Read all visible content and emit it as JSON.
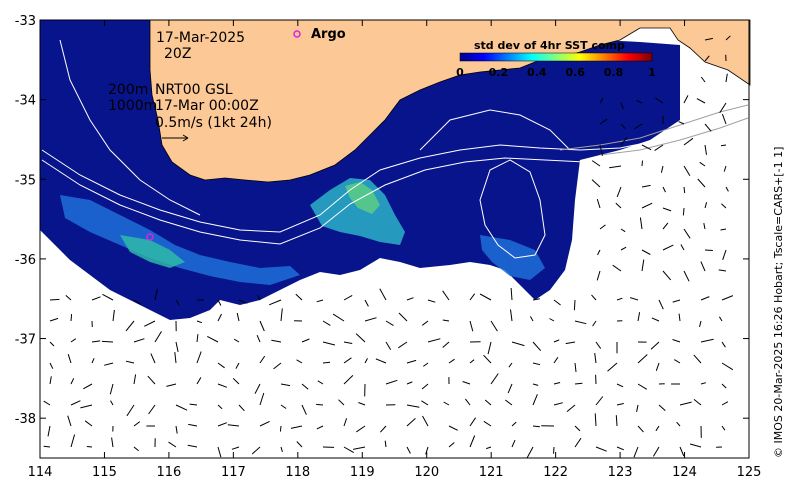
{
  "title": {
    "date": "17-Mar-2025",
    "hour": "20Z"
  },
  "depth_info": {
    "line1_depth": "200m",
    "line1_text": "NRT00 GSL",
    "line2_depth": "1000m",
    "line2_text": "17-Mar 00:00Z",
    "scale_label": "0.5m/s (1kt 24h)"
  },
  "legend": {
    "argo_label": "Argo",
    "argo_color": "#e020e0"
  },
  "colorbar": {
    "title": "std dev of 4hr SST comp",
    "ticks": [
      "0",
      "0.2",
      "0.4",
      "0.6",
      "0.8",
      "1"
    ]
  },
  "credit": "© IMOS 20-Mar-2025 16:26 Hobart; Tscale=CARS+[-1 1]",
  "axes": {
    "lon_labels": [
      "114",
      "115",
      "116",
      "117",
      "118",
      "119",
      "120",
      "121",
      "122",
      "123",
      "124",
      "125"
    ],
    "lat_labels": [
      "-33",
      "-34",
      "-35",
      "-36",
      "-37",
      "-38"
    ],
    "xlim": [
      114,
      125
    ],
    "ylim": [
      -38.5,
      -33
    ]
  },
  "colors": {
    "land": "#fcc896",
    "ocean_low": "#08148c",
    "contour": "#ffffff",
    "vector": "#000000"
  }
}
